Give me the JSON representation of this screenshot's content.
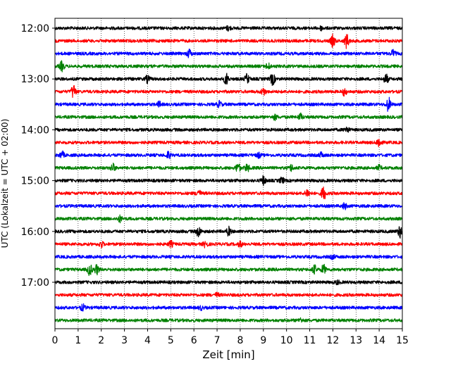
{
  "chart_data": {
    "type": "line",
    "title": "",
    "xlabel": "Zeit  [min]",
    "ylabel": "UTC (Lokalzeit = UTC + 02:00)",
    "xlim": [
      0,
      15
    ],
    "x_ticks": [
      "0",
      "1",
      "2",
      "3",
      "4",
      "5",
      "6",
      "7",
      "8",
      "9",
      "10",
      "11",
      "12",
      "13",
      "14",
      "15"
    ],
    "y_tick_labels": [
      "12:00",
      "13:00",
      "14:00",
      "15:00",
      "16:00",
      "17:00"
    ],
    "y_tick_rows": [
      0,
      4,
      8,
      12,
      16,
      20
    ],
    "trace_row_count": 24,
    "trace_colors": [
      "#000000",
      "#ff0000",
      "#0000ff",
      "#008000"
    ],
    "grid": "vertical-dotted",
    "bursts": [
      [
        [
          7.5,
          0.4
        ],
        [
          11.5,
          0.3
        ]
      ],
      [
        [
          12.0,
          1.0
        ],
        [
          12.6,
          1.2
        ]
      ],
      [
        [
          5.8,
          0.7
        ],
        [
          14.6,
          0.6
        ]
      ],
      [
        [
          0.3,
          0.8
        ],
        [
          9.2,
          0.5
        ]
      ],
      [
        [
          4.0,
          0.6
        ],
        [
          7.4,
          1.0
        ],
        [
          8.3,
          0.8
        ],
        [
          9.4,
          1.0
        ],
        [
          14.3,
          0.8
        ]
      ],
      [
        [
          0.8,
          1.2
        ],
        [
          9.0,
          0.6
        ],
        [
          12.5,
          0.6
        ]
      ],
      [
        [
          4.5,
          0.4
        ],
        [
          7.1,
          0.5
        ],
        [
          14.4,
          1.2
        ]
      ],
      [
        [
          9.5,
          0.4
        ],
        [
          10.6,
          0.5
        ]
      ],
      [
        [
          12.6,
          0.5
        ]
      ],
      [
        [
          14.0,
          0.9
        ]
      ],
      [
        [
          0.3,
          0.6
        ],
        [
          4.9,
          0.6
        ],
        [
          8.8,
          0.4
        ],
        [
          11.5,
          0.4
        ]
      ],
      [
        [
          2.5,
          0.7
        ],
        [
          7.9,
          0.8
        ],
        [
          8.3,
          0.6
        ],
        [
          10.2,
          0.5
        ],
        [
          14.0,
          0.4
        ]
      ],
      [
        [
          9.0,
          0.7
        ],
        [
          9.8,
          0.5
        ]
      ],
      [
        [
          6.2,
          0.6
        ],
        [
          10.9,
          0.7
        ],
        [
          11.6,
          1.2
        ]
      ],
      [
        [
          12.5,
          0.5
        ]
      ],
      [
        [
          2.8,
          0.5
        ]
      ],
      [
        [
          6.2,
          0.9
        ],
        [
          7.5,
          0.7
        ],
        [
          14.9,
          1.0
        ]
      ],
      [
        [
          2.0,
          0.5
        ],
        [
          5.0,
          0.5
        ],
        [
          6.5,
          0.5
        ],
        [
          8.0,
          0.4
        ]
      ],
      [
        [
          12.0,
          0.3
        ]
      ],
      [
        [
          1.5,
          1.0
        ],
        [
          1.8,
          0.8
        ],
        [
          11.2,
          0.7
        ],
        [
          11.6,
          0.8
        ]
      ],
      [
        [
          12.2,
          0.3
        ]
      ],
      [
        [
          7.0,
          0.3
        ]
      ],
      [
        [
          1.2,
          0.5
        ],
        [
          6.3,
          0.3
        ]
      ],
      [
        [
          10.6,
          0.3
        ]
      ]
    ]
  }
}
